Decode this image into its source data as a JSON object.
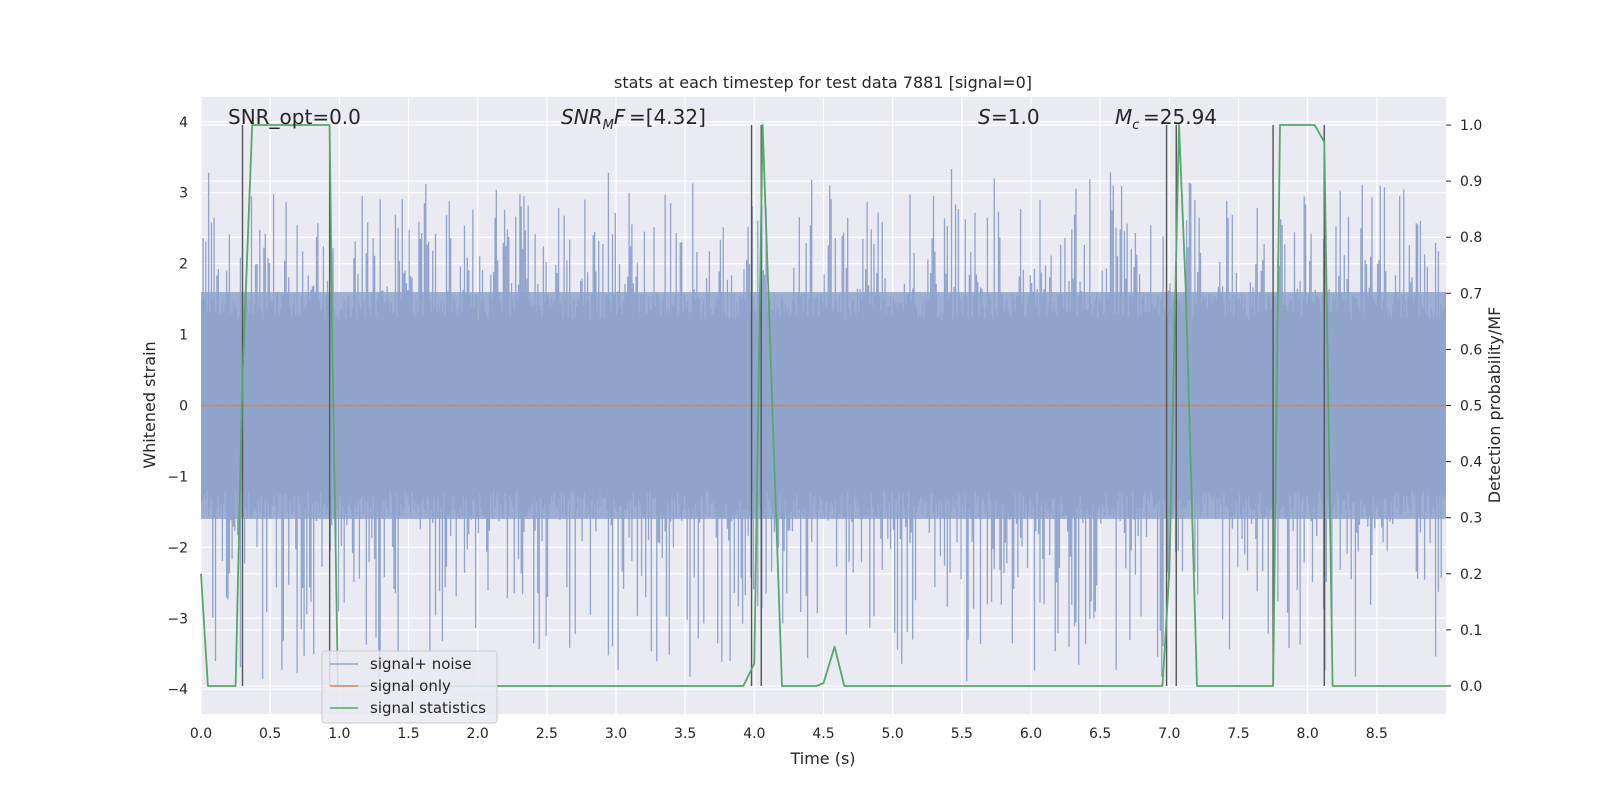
{
  "chart_data": {
    "type": "line",
    "title": "stats at each timestep for test data 7881 [signal=0]",
    "xlabel": "Time (s)",
    "ylabel_left": "Whitened strain",
    "ylabel_right": "Detection probability/MF",
    "xlim": [
      0.0,
      9.0
    ],
    "ylim_left": [
      -4.35,
      4.35
    ],
    "ylim_right": [
      -0.05,
      1.05
    ],
    "x_ticks": [
      "0.0",
      "0.5",
      "1.0",
      "1.5",
      "2.0",
      "2.5",
      "3.0",
      "3.5",
      "4.0",
      "4.5",
      "5.0",
      "5.5",
      "6.0",
      "6.5",
      "7.0",
      "7.5",
      "8.0",
      "8.5"
    ],
    "y_ticks_left": [
      "4",
      "3",
      "2",
      "1",
      "0",
      "−1",
      "−2",
      "−3",
      "−4"
    ],
    "y_ticks_right": [
      "1.0",
      "0.9",
      "0.8",
      "0.7",
      "0.6",
      "0.5",
      "0.4",
      "0.3",
      "0.2",
      "0.1",
      "0.0"
    ],
    "grid": true,
    "annotations": {
      "snr_opt": "SNR_opt=0.0",
      "snr_mf_value": "=[4.32]",
      "s_value": "=1.0",
      "mc_value": "=25.94"
    },
    "legend": {
      "placement": "lower-left",
      "entries": [
        "signal+ noise",
        "signal only",
        "signal statistics"
      ]
    },
    "series": [
      {
        "name": "signal+ noise",
        "color": "#8fa3cc",
        "description": "whitened strain noise, approx. uniform band",
        "envelope_typical": [
          -1.6,
          1.6
        ],
        "envelope_extreme": [
          -4.0,
          3.4
        ]
      },
      {
        "name": "signal only",
        "color": "#dd8452",
        "x": [
          0.0,
          9.0
        ],
        "y": [
          0.0,
          0.0
        ]
      },
      {
        "name": "signal statistics",
        "color": "#55a868",
        "x": [
          0.0,
          0.05,
          0.25,
          0.3,
          0.37,
          0.93,
          0.95,
          0.99,
          3.92,
          4.0,
          4.06,
          4.2,
          4.45,
          4.5,
          4.58,
          4.65,
          6.95,
          7.0,
          7.07,
          7.12,
          7.2,
          7.45,
          7.75,
          7.8,
          8.05,
          8.12,
          8.18,
          8.35,
          9.0
        ],
        "y": [
          0.2,
          0.0,
          0.0,
          0.55,
          1.0,
          1.0,
          0.6,
          0.0,
          0.0,
          0.04,
          1.0,
          0.0,
          0.0,
          0.005,
          0.07,
          0.0,
          0.0,
          0.2,
          1.0,
          0.7,
          0.0,
          0.0,
          0.0,
          1.0,
          1.0,
          0.97,
          0.0,
          0.0,
          0.0
        ]
      }
    ],
    "vertical_markers": [
      0.3,
      0.93,
      3.98,
      4.05,
      6.98,
      7.05,
      7.75,
      8.12
    ]
  }
}
